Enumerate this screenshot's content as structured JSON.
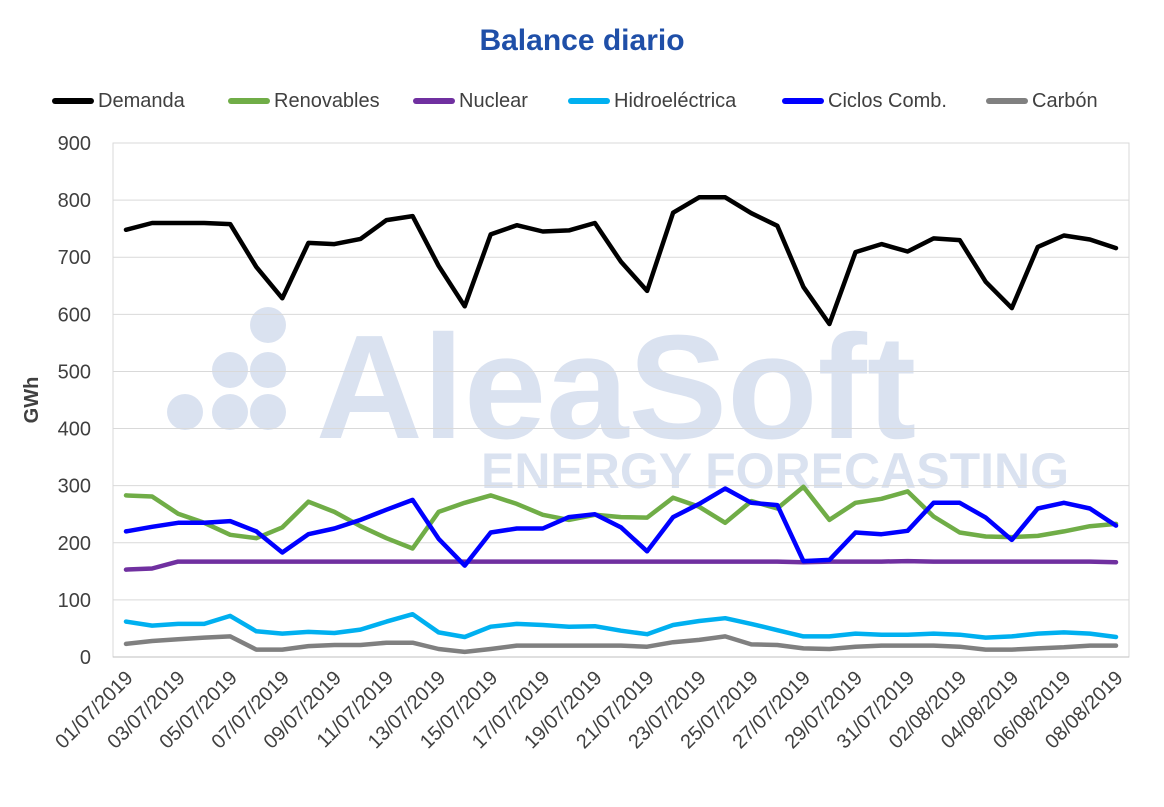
{
  "chart_data": {
    "type": "line",
    "title": "Balance diario",
    "ylabel": "GWh",
    "xlabel": "",
    "ylim": [
      0,
      900
    ],
    "yticks": [
      0,
      100,
      200,
      300,
      400,
      500,
      600,
      700,
      800,
      900
    ],
    "grid": true,
    "legend_position": "top",
    "watermark": {
      "line1": "AleaSoft",
      "line2": "ENERGY FORECASTING"
    },
    "x": [
      "01/07/2019",
      "02/07/2019",
      "03/07/2019",
      "04/07/2019",
      "05/07/2019",
      "06/07/2019",
      "07/07/2019",
      "08/07/2019",
      "09/07/2019",
      "10/07/2019",
      "11/07/2019",
      "12/07/2019",
      "13/07/2019",
      "14/07/2019",
      "15/07/2019",
      "16/07/2019",
      "17/07/2019",
      "18/07/2019",
      "19/07/2019",
      "20/07/2019",
      "21/07/2019",
      "22/07/2019",
      "23/07/2019",
      "24/07/2019",
      "25/07/2019",
      "26/07/2019",
      "27/07/2019",
      "28/07/2019",
      "29/07/2019",
      "30/07/2019",
      "31/07/2019",
      "01/08/2019",
      "02/08/2019",
      "03/08/2019",
      "04/08/2019",
      "05/08/2019",
      "06/08/2019",
      "07/08/2019",
      "08/08/2019"
    ],
    "xtick_labels": [
      "01/07/2019",
      "03/07/2019",
      "05/07/2019",
      "07/07/2019",
      "09/07/2019",
      "11/07/2019",
      "13/07/2019",
      "15/07/2019",
      "17/07/2019",
      "19/07/2019",
      "21/07/2019",
      "23/07/2019",
      "25/07/2019",
      "27/07/2019",
      "29/07/2019",
      "31/07/2019",
      "02/08/2019",
      "04/08/2019",
      "06/08/2019",
      "08/08/2019"
    ],
    "series": [
      {
        "name": "Demanda",
        "color": "#000000",
        "values": [
          748,
          760,
          760,
          760,
          758,
          683,
          628,
          725,
          723,
          732,
          765,
          772,
          685,
          614,
          740,
          756,
          745,
          747,
          760,
          692,
          641,
          778,
          805,
          805,
          777,
          755,
          648,
          583,
          709,
          723,
          710,
          733,
          730,
          657,
          611,
          718,
          738,
          731,
          716
        ]
      },
      {
        "name": "Renovables",
        "color": "#70ad47",
        "values": [
          283,
          281,
          251,
          235,
          214,
          208,
          227,
          272,
          254,
          229,
          208,
          190,
          254,
          270,
          283,
          268,
          249,
          240,
          249,
          245,
          244,
          279,
          263,
          235,
          273,
          260,
          298,
          240,
          270,
          277,
          290,
          246,
          218,
          211,
          210,
          212,
          220,
          229,
          233
        ]
      },
      {
        "name": "Nuclear",
        "color": "#7030a0",
        "values": [
          153,
          155,
          167,
          167,
          167,
          167,
          167,
          167,
          167,
          167,
          167,
          167,
          167,
          167,
          167,
          167,
          167,
          167,
          167,
          167,
          167,
          167,
          167,
          167,
          167,
          167,
          166,
          167,
          167,
          167,
          168,
          167,
          167,
          167,
          167,
          167,
          167,
          167,
          166
        ]
      },
      {
        "name": "Hidroeléctrica",
        "color": "#00b0f0",
        "values": [
          62,
          55,
          58,
          58,
          72,
          45,
          41,
          44,
          42,
          48,
          62,
          75,
          43,
          35,
          53,
          58,
          56,
          53,
          54,
          46,
          40,
          56,
          63,
          68,
          58,
          47,
          36,
          36,
          41,
          39,
          39,
          41,
          39,
          34,
          36,
          41,
          43,
          41,
          35
        ]
      },
      {
        "name": "Ciclos Comb.",
        "color": "#0000ff",
        "values": [
          220,
          228,
          235,
          235,
          238,
          220,
          183,
          215,
          225,
          240,
          258,
          275,
          207,
          160,
          218,
          225,
          225,
          245,
          250,
          227,
          185,
          245,
          268,
          295,
          270,
          266,
          168,
          170,
          218,
          215,
          221,
          270,
          270,
          244,
          205,
          260,
          270,
          260,
          230
        ]
      },
      {
        "name": "Carbón",
        "color": "#808080",
        "values": [
          23,
          28,
          31,
          34,
          36,
          13,
          13,
          19,
          21,
          21,
          25,
          25,
          14,
          9,
          14,
          20,
          20,
          20,
          20,
          20,
          18,
          26,
          30,
          36,
          22,
          21,
          15,
          14,
          18,
          20,
          20,
          20,
          18,
          13,
          13,
          15,
          17,
          20,
          20
        ]
      }
    ]
  }
}
